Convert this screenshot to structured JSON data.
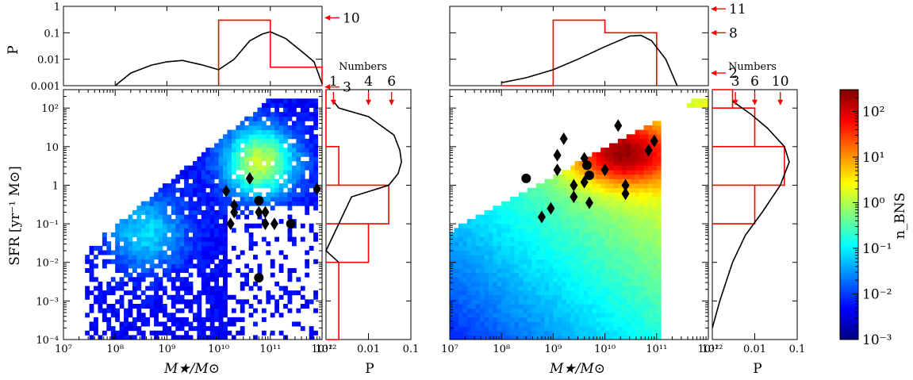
{
  "chart_data": [
    {
      "panel": "left",
      "type": "heatmap",
      "xlabel": "M★/M⊙",
      "ylabel": "SFR [yr⁻¹ M⊙]",
      "x_scale": "log",
      "y_scale": "log",
      "xlim": [
        10000000.0,
        1000000000000.0
      ],
      "ylim": [
        0.0001,
        300
      ],
      "x_ticks": [
        "10⁷",
        "10⁸",
        "10⁹",
        "10¹⁰",
        "10¹¹",
        "10¹²"
      ],
      "y_ticks": [
        "10⁻⁴",
        "10⁻³",
        "10⁻²",
        "10⁻¹",
        "1",
        "10",
        "10²"
      ],
      "hosts": {
        "diamonds": [
          {
            "x": 14000000000.0,
            "y": 0.7
          },
          {
            "x": 20000000000.0,
            "y": 0.3
          },
          {
            "x": 20000000000.0,
            "y": 0.2
          },
          {
            "x": 17000000000.0,
            "y": 0.1
          },
          {
            "x": 40000000000.0,
            "y": 1.5
          },
          {
            "x": 60000000000.0,
            "y": 0.2
          },
          {
            "x": 80000000000.0,
            "y": 0.2
          },
          {
            "x": 80000000000.0,
            "y": 0.1
          },
          {
            "x": 120000000000.0,
            "y": 0.1
          },
          {
            "x": 800000000000.0,
            "y": 0.8
          }
        ],
        "circles": [
          {
            "x": 60000000000.0,
            "y": 0.4
          },
          {
            "x": 250000000000.0,
            "y": 0.1
          },
          {
            "x": 60000000000.0,
            "y": 0.004
          }
        ]
      },
      "top_marginal": {
        "ylabel": "P",
        "y_ticks": [
          "0.001",
          "0.01",
          "0.1",
          "1"
        ],
        "ylim": [
          0.001,
          1
        ],
        "red_hist": {
          "edges": [
            10000000000.0,
            100000000000.0,
            1000000000000.0
          ],
          "values": [
            0.3,
            0.005
          ]
        },
        "black_curve": [
          [
            100000000.0,
            0.001
          ],
          [
            200000000.0,
            0.003
          ],
          [
            500000000.0,
            0.006
          ],
          [
            1000000000.0,
            0.008
          ],
          [
            2000000000.0,
            0.009
          ],
          [
            5000000000.0,
            0.006
          ],
          [
            10000000000.0,
            0.004
          ],
          [
            20000000000.0,
            0.01
          ],
          [
            40000000000.0,
            0.05
          ],
          [
            70000000000.0,
            0.09
          ],
          [
            100000000000.0,
            0.11
          ],
          [
            200000000000.0,
            0.06
          ],
          [
            400000000000.0,
            0.02
          ],
          [
            700000000000.0,
            0.008
          ],
          [
            1000000000000.0,
            0.0012
          ]
        ],
        "arrows": [
          {
            "label": "10",
            "value": 0.37
          },
          {
            "label": "3",
            "value": 0.0009
          }
        ],
        "numbers_label": "Numbers"
      },
      "right_marginal": {
        "xlabel": "P",
        "x_ticks": [
          "0.01",
          "0.1"
        ],
        "xlim": [
          0.001,
          0.1
        ],
        "red_hist": {
          "edges": [
            0.0001,
            0.01,
            0.1,
            1,
            10,
            300
          ],
          "values": [
            0.002,
            0.01,
            0.03,
            0.002,
            0.0
          ]
        },
        "black_curve": [
          [
            0.01,
            0.002
          ],
          [
            0.02,
            0.001
          ],
          [
            0.1,
            0.002
          ],
          [
            0.5,
            0.004
          ],
          [
            1,
            0.03
          ],
          [
            2,
            0.05
          ],
          [
            4,
            0.06
          ],
          [
            8,
            0.055
          ],
          [
            20,
            0.04
          ],
          [
            60,
            0.01
          ],
          [
            100,
            0.002
          ],
          [
            150,
            0.0015
          ]
        ],
        "arrow_labels": [
          "1",
          "4",
          "6"
        ],
        "arrow_values": [
          0.0015,
          0.01,
          0.035
        ],
        "numbers_label": "Numbers"
      }
    },
    {
      "panel": "right",
      "type": "heatmap",
      "xlabel": "M★/M⊙",
      "x_scale": "log",
      "y_scale": "log",
      "xlim": [
        10000000.0,
        1000000000000.0
      ],
      "ylim": [
        0.0001,
        300
      ],
      "x_ticks": [
        "10⁷",
        "10⁸",
        "10⁹",
        "10¹⁰",
        "10¹¹",
        "10¹²"
      ],
      "hosts": {
        "diamonds": [
          {
            "x": 1600000000.0,
            "y": 16
          },
          {
            "x": 1200000000.0,
            "y": 6
          },
          {
            "x": 1200000000.0,
            "y": 2.5
          },
          {
            "x": 4000000000.0,
            "y": 5
          },
          {
            "x": 2500000000.0,
            "y": 1.0
          },
          {
            "x": 2500000000.0,
            "y": 0.5
          },
          {
            "x": 4000000000.0,
            "y": 1.2
          },
          {
            "x": 5000000000.0,
            "y": 0.35
          },
          {
            "x": 10000000000.0,
            "y": 2.5
          },
          {
            "x": 18000000000.0,
            "y": 35
          },
          {
            "x": 25000000000.0,
            "y": 1.0
          },
          {
            "x": 25000000000.0,
            "y": 0.6
          },
          {
            "x": 70000000000.0,
            "y": 8
          },
          {
            "x": 90000000000.0,
            "y": 14
          },
          {
            "x": 600000000.0,
            "y": 0.15
          },
          {
            "x": 900000000.0,
            "y": 0.25
          }
        ],
        "circles": [
          {
            "x": 300000000.0,
            "y": 1.5
          },
          {
            "x": 4500000000.0,
            "y": 3.3
          },
          {
            "x": 5000000000.0,
            "y": 1.8
          }
        ]
      },
      "top_marginal": {
        "ylim": [
          0.001,
          1
        ],
        "red_hist": {
          "edges": [
            100000000.0,
            1000000000.0,
            10000000000.0,
            100000000000.0
          ],
          "values": [
            0.001,
            0.3,
            0.1
          ]
        },
        "black_curve": [
          [
            100000000.0,
            0.0013
          ],
          [
            300000000.0,
            0.002
          ],
          [
            1000000000.0,
            0.004
          ],
          [
            3000000000.0,
            0.01
          ],
          [
            10000000000.0,
            0.03
          ],
          [
            30000000000.0,
            0.075
          ],
          [
            50000000000.0,
            0.08
          ],
          [
            80000000000.0,
            0.05
          ],
          [
            150000000000.0,
            0.01
          ],
          [
            250000000000.0,
            0.001
          ]
        ],
        "arrows": [
          {
            "label": "11",
            "value": 0.8
          },
          {
            "label": "8",
            "value": 0.1
          },
          {
            "label": "2",
            "value": 0.003
          }
        ],
        "numbers_label": "Numbers"
      },
      "right_marginal": {
        "xlabel": "P",
        "x_ticks": [
          "0.01",
          "0.1"
        ],
        "xlim": [
          0.001,
          0.1
        ],
        "red_hist": {
          "edges": [
            0.1,
            1,
            10,
            100,
            300
          ],
          "values": [
            0.01,
            0.05,
            0.01,
            0.003
          ]
        },
        "black_curve": [
          [
            0.0002,
            0.001
          ],
          [
            0.001,
            0.0015
          ],
          [
            0.01,
            0.003
          ],
          [
            0.05,
            0.006
          ],
          [
            0.2,
            0.015
          ],
          [
            1,
            0.04
          ],
          [
            4,
            0.065
          ],
          [
            10,
            0.05
          ],
          [
            30,
            0.02
          ],
          [
            70,
            0.008
          ],
          [
            150,
            0.003
          ]
        ],
        "arrow_labels": [
          "3",
          "6",
          "10"
        ],
        "arrow_values": [
          0.0035,
          0.01,
          0.04
        ],
        "numbers_label": "Numbers"
      }
    }
  ],
  "colorbar": {
    "label": "n_BNS",
    "scale": "log",
    "range": [
      0.001,
      300
    ],
    "ticks": [
      "10⁻³",
      "10⁻²",
      "10⁻¹",
      "10⁰",
      "10¹",
      "10²"
    ],
    "colormap": [
      "#00007f",
      "#0000ff",
      "#00bfff",
      "#7fff7f",
      "#ffff00",
      "#ff7f00",
      "#ff0000",
      "#7f0000"
    ]
  }
}
